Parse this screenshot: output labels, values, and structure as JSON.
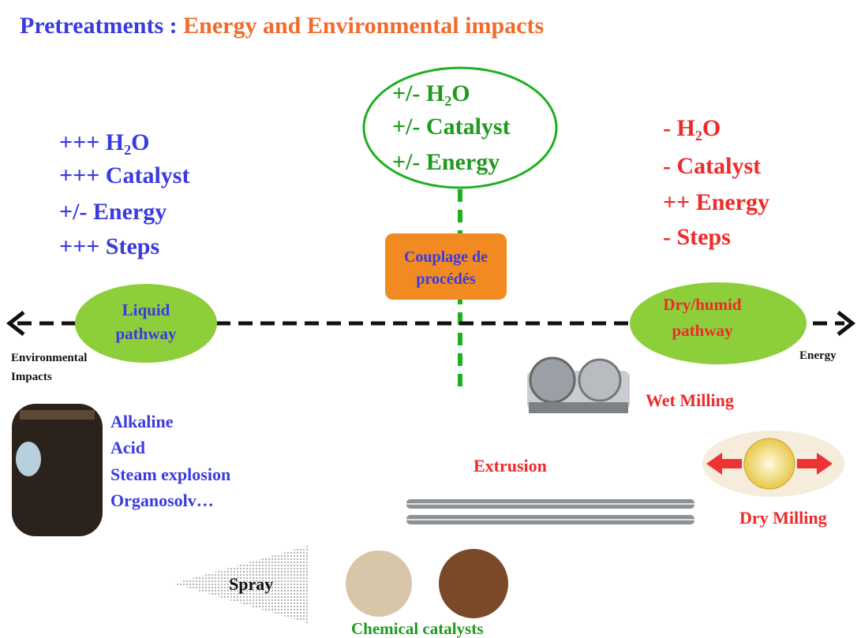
{
  "header": {
    "title_part1": "Pretreatments :",
    "title_part2": "Energy and Environmental impacts"
  },
  "left_list": [
    "+++ H₂O",
    "+++ Catalyst",
    "+/- Energy",
    "+++ Steps"
  ],
  "center_list": [
    "+/- H₂O",
    "+/- Catalyst",
    "+/- Energy"
  ],
  "right_list": [
    "- H₂O",
    "- Catalyst",
    "++ Energy",
    "- Steps"
  ],
  "coupling_box": [
    "Couplage de",
    "procédés"
  ],
  "liquid_pathway": [
    "Liquid",
    "pathway"
  ],
  "dry_pathway": [
    "Dry/humid",
    "pathway"
  ],
  "axis": {
    "left_label": [
      "Environmental",
      "Impacts"
    ],
    "right_label": "Energy"
  },
  "liquid_methods": [
    "Alkaline",
    "Acid",
    "Steam explosion",
    "Organosolv…"
  ],
  "wet_milling": "Wet Milling",
  "extrusion": "Extrusion",
  "dry_milling": "Dry Milling",
  "spray": "Spray",
  "chemical_catalysts": "Chemical catalysts"
}
